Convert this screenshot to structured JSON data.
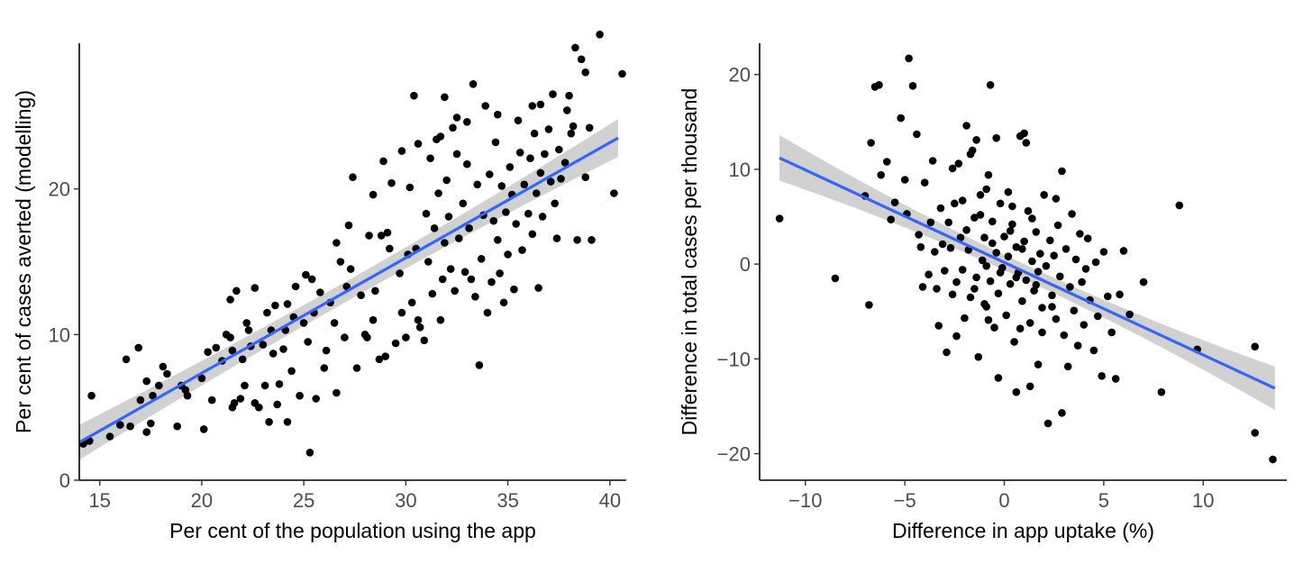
{
  "chart_data": [
    {
      "type": "scatter",
      "xlabel": "Per cent of the population using the app",
      "ylabel": "Per cent of cases averted (modelling)",
      "xlim": [
        14,
        40.8
      ],
      "ylim": [
        0,
        30
      ],
      "xticks": [
        15,
        20,
        25,
        30,
        35,
        40
      ],
      "yticks": [
        0,
        10,
        20
      ],
      "grid": false,
      "legend": "none",
      "colors": {
        "points": "#000000",
        "fit": "#3366ff",
        "band": "#bdbdbd"
      },
      "fit": {
        "x": [
          14,
          40.4
        ],
        "y": [
          2.6,
          23.5
        ],
        "band_half_width": [
          1.2,
          0.7,
          1.3
        ]
      },
      "points": [
        [
          14.2,
          2.5
        ],
        [
          14.5,
          2.7
        ],
        [
          14.6,
          5.8
        ],
        [
          15.5,
          3.0
        ],
        [
          16.0,
          3.8
        ],
        [
          16.3,
          8.3
        ],
        [
          16.5,
          3.7
        ],
        [
          16.9,
          9.1
        ],
        [
          17.0,
          5.5
        ],
        [
          17.3,
          3.3
        ],
        [
          17.3,
          6.8
        ],
        [
          17.5,
          3.9
        ],
        [
          17.6,
          5.8
        ],
        [
          17.9,
          6.5
        ],
        [
          18.1,
          7.8
        ],
        [
          18.3,
          7.3
        ],
        [
          18.8,
          3.7
        ],
        [
          19.2,
          6.2
        ],
        [
          19.3,
          5.8
        ],
        [
          20.1,
          3.5
        ],
        [
          20.3,
          8.8
        ],
        [
          20.5,
          5.5
        ],
        [
          20.7,
          9.1
        ],
        [
          21.0,
          8.2
        ],
        [
          21.2,
          10.0
        ],
        [
          21.4,
          9.8
        ],
        [
          21.4,
          12.4
        ],
        [
          21.5,
          5.0
        ],
        [
          21.6,
          5.3
        ],
        [
          21.7,
          13.0
        ],
        [
          21.9,
          5.6
        ],
        [
          22.0,
          8.3
        ],
        [
          22.1,
          6.5
        ],
        [
          22.2,
          10.8
        ],
        [
          22.4,
          9.2
        ],
        [
          22.6,
          5.3
        ],
        [
          22.6,
          13.2
        ],
        [
          22.8,
          5.0
        ],
        [
          23.0,
          9.3
        ],
        [
          23.1,
          6.5
        ],
        [
          23.2,
          11.5
        ],
        [
          23.3,
          4.0
        ],
        [
          23.4,
          10.3
        ],
        [
          23.5,
          8.7
        ],
        [
          23.6,
          12.0
        ],
        [
          23.7,
          5.2
        ],
        [
          23.8,
          6.6
        ],
        [
          24.0,
          9.0
        ],
        [
          24.1,
          10.3
        ],
        [
          24.2,
          4.0
        ],
        [
          24.4,
          7.5
        ],
        [
          24.5,
          11.2
        ],
        [
          24.6,
          13.3
        ],
        [
          24.8,
          5.8
        ],
        [
          25.0,
          10.8
        ],
        [
          25.1,
          14.1
        ],
        [
          25.2,
          9.5
        ],
        [
          25.3,
          1.9
        ],
        [
          25.5,
          11.5
        ],
        [
          25.6,
          5.6
        ],
        [
          25.8,
          12.9
        ],
        [
          26.0,
          7.7
        ],
        [
          26.1,
          8.9
        ],
        [
          26.3,
          12.2
        ],
        [
          26.5,
          10.8
        ],
        [
          26.6,
          6.0
        ],
        [
          26.8,
          15.0
        ],
        [
          27.0,
          9.8
        ],
        [
          27.1,
          13.3
        ],
        [
          27.3,
          14.5
        ],
        [
          27.4,
          20.8
        ],
        [
          27.6,
          7.7
        ],
        [
          27.8,
          12.7
        ],
        [
          28.0,
          10.0
        ],
        [
          28.1,
          9.8
        ],
        [
          28.2,
          16.8
        ],
        [
          28.4,
          11.0
        ],
        [
          28.5,
          13.0
        ],
        [
          28.7,
          8.3
        ],
        [
          28.8,
          16.8
        ],
        [
          28.9,
          21.9
        ],
        [
          29.0,
          8.5
        ],
        [
          29.2,
          15.9
        ],
        [
          29.3,
          20.4
        ],
        [
          29.5,
          9.4
        ],
        [
          29.7,
          14.2
        ],
        [
          29.8,
          11.5
        ],
        [
          30.0,
          9.8
        ],
        [
          30.1,
          15.5
        ],
        [
          30.2,
          20.1
        ],
        [
          30.3,
          12.2
        ],
        [
          30.5,
          15.9
        ],
        [
          30.6,
          11.0
        ],
        [
          30.7,
          10.5
        ],
        [
          30.9,
          9.6
        ],
        [
          31.0,
          18.3
        ],
        [
          31.1,
          15.0
        ],
        [
          31.2,
          22.1
        ],
        [
          31.3,
          12.8
        ],
        [
          31.4,
          17.3
        ],
        [
          31.5,
          23.4
        ],
        [
          31.6,
          19.7
        ],
        [
          31.7,
          11.0
        ],
        [
          31.8,
          13.8
        ],
        [
          31.9,
          16.3
        ],
        [
          32.0,
          20.6
        ],
        [
          32.1,
          18.1
        ],
        [
          32.2,
          14.5
        ],
        [
          32.3,
          24.2
        ],
        [
          32.4,
          13.0
        ],
        [
          32.5,
          22.4
        ],
        [
          32.6,
          16.6
        ],
        [
          32.8,
          19.0
        ],
        [
          32.9,
          14.3
        ],
        [
          33.0,
          21.7
        ],
        [
          33.1,
          17.3
        ],
        [
          33.2,
          13.8
        ],
        [
          33.3,
          27.2
        ],
        [
          33.4,
          12.6
        ],
        [
          33.5,
          20.3
        ],
        [
          33.6,
          7.9
        ],
        [
          33.7,
          15.2
        ],
        [
          33.8,
          18.2
        ],
        [
          34.0,
          11.5
        ],
        [
          34.1,
          21.0
        ],
        [
          34.2,
          13.6
        ],
        [
          34.3,
          17.8
        ],
        [
          34.4,
          23.2
        ],
        [
          34.5,
          16.5
        ],
        [
          34.6,
          14.2
        ],
        [
          34.7,
          20.2
        ],
        [
          34.8,
          12.2
        ],
        [
          34.9,
          18.4
        ],
        [
          35.0,
          15.5
        ],
        [
          35.1,
          21.5
        ],
        [
          35.2,
          19.6
        ],
        [
          35.3,
          13.1
        ],
        [
          35.4,
          17.6
        ],
        [
          35.5,
          24.7
        ],
        [
          35.6,
          22.5
        ],
        [
          35.7,
          15.8
        ],
        [
          35.8,
          20.3
        ],
        [
          36.0,
          18.3
        ],
        [
          36.1,
          22.1
        ],
        [
          36.2,
          16.9
        ],
        [
          36.3,
          23.8
        ],
        [
          36.4,
          19.7
        ],
        [
          36.5,
          13.2
        ],
        [
          36.6,
          21.1
        ],
        [
          36.7,
          18.1
        ],
        [
          36.8,
          22.4
        ],
        [
          37.0,
          24.1
        ],
        [
          37.1,
          20.5
        ],
        [
          37.2,
          26.5
        ],
        [
          37.3,
          19.0
        ],
        [
          37.4,
          16.6
        ],
        [
          37.5,
          22.7
        ],
        [
          37.6,
          20.7
        ],
        [
          37.8,
          21.8
        ],
        [
          38.0,
          26.4
        ],
        [
          38.1,
          23.8
        ],
        [
          38.2,
          24.3
        ],
        [
          38.4,
          16.5
        ],
        [
          38.6,
          28.9
        ],
        [
          38.8,
          20.8
        ],
        [
          39.1,
          16.5
        ],
        [
          39.5,
          30.6
        ],
        [
          40.2,
          19.7
        ],
        [
          40.6,
          27.9
        ],
        [
          30.4,
          26.4
        ],
        [
          31.9,
          26.3
        ],
        [
          32.5,
          24.9
        ],
        [
          33.9,
          25.7
        ],
        [
          34.5,
          25.1
        ],
        [
          36.2,
          25.7
        ],
        [
          36.6,
          25.8
        ],
        [
          37.9,
          25.4
        ],
        [
          39.0,
          24.2
        ],
        [
          38.8,
          28.0
        ],
        [
          38.3,
          29.7
        ],
        [
          29.8,
          22.6
        ],
        [
          30.6,
          23.1
        ],
        [
          31.7,
          23.6
        ],
        [
          33.0,
          24.6
        ],
        [
          28.4,
          19.6
        ],
        [
          29.1,
          17.0
        ],
        [
          27.2,
          17.5
        ],
        [
          26.6,
          16.3
        ],
        [
          25.4,
          13.8
        ],
        [
          24.2,
          12.1
        ],
        [
          22.3,
          10.3
        ],
        [
          21.5,
          8.9
        ],
        [
          20.0,
          7.0
        ],
        [
          19.0,
          6.5
        ]
      ]
    },
    {
      "type": "scatter",
      "xlabel": "Difference in app uptake (%)",
      "ylabel": "Difference in total cases per thousand",
      "xlim": [
        -12.3,
        14.2
      ],
      "ylim": [
        -22.8,
        23.3
      ],
      "xticks": [
        -10,
        -5,
        0,
        5,
        10
      ],
      "yticks": [
        -20,
        -10,
        0,
        10,
        20
      ],
      "grid": false,
      "legend": "none",
      "colors": {
        "points": "#000000",
        "fit": "#3366ff",
        "band": "#bdbdbd"
      },
      "fit": {
        "x": [
          -11.3,
          13.6
        ],
        "y": [
          11.2,
          -13.1
        ],
        "band_half_width": [
          2.4,
          0.8,
          2.3
        ]
      },
      "points": [
        [
          -11.3,
          4.8
        ],
        [
          -8.5,
          -1.5
        ],
        [
          -7.0,
          7.2
        ],
        [
          -6.8,
          -4.3
        ],
        [
          -6.7,
          12.8
        ],
        [
          -6.5,
          18.7
        ],
        [
          -6.3,
          18.9
        ],
        [
          -6.2,
          9.4
        ],
        [
          -5.9,
          10.8
        ],
        [
          -5.7,
          4.7
        ],
        [
          -5.5,
          6.5
        ],
        [
          -5.2,
          15.4
        ],
        [
          -5.0,
          8.9
        ],
        [
          -4.9,
          5.3
        ],
        [
          -4.8,
          21.7
        ],
        [
          -4.6,
          18.8
        ],
        [
          -4.4,
          13.7
        ],
        [
          -4.3,
          3.1
        ],
        [
          -4.1,
          -2.4
        ],
        [
          -4.0,
          8.6
        ],
        [
          -3.8,
          -1.1
        ],
        [
          -3.7,
          4.4
        ],
        [
          -3.6,
          10.9
        ],
        [
          -3.5,
          1.3
        ],
        [
          -3.3,
          -6.5
        ],
        [
          -3.2,
          5.9
        ],
        [
          -3.1,
          2.1
        ],
        [
          -3.0,
          -0.7
        ],
        [
          -2.9,
          -9.3
        ],
        [
          -2.8,
          4.4
        ],
        [
          -2.7,
          1.7
        ],
        [
          -2.6,
          -3.2
        ],
        [
          -2.5,
          6.4
        ],
        [
          -2.4,
          -1.9
        ],
        [
          -2.3,
          10.6
        ],
        [
          -2.2,
          2.8
        ],
        [
          -2.1,
          -0.6
        ],
        [
          -2.0,
          -5.7
        ],
        [
          -1.9,
          3.6
        ],
        [
          -1.8,
          1.5
        ],
        [
          -1.7,
          -3.5
        ],
        [
          -1.6,
          12.0
        ],
        [
          -1.5,
          4.9
        ],
        [
          -1.4,
          -1.4
        ],
        [
          -1.3,
          -9.8
        ],
        [
          -1.2,
          7.3
        ],
        [
          -1.1,
          0.4
        ],
        [
          -1.0,
          2.8
        ],
        [
          -0.9,
          -4.5
        ],
        [
          -0.8,
          9.4
        ],
        [
          -0.7,
          -1.8
        ],
        [
          -0.6,
          4.5
        ],
        [
          -0.5,
          -6.7
        ],
        [
          -0.4,
          1.2
        ],
        [
          -0.3,
          -3.1
        ],
        [
          -0.2,
          6.4
        ],
        [
          -0.1,
          -0.4
        ],
        [
          0.0,
          2.9
        ],
        [
          0.1,
          -5.4
        ],
        [
          0.2,
          0.8
        ],
        [
          0.3,
          -2.1
        ],
        [
          0.4,
          4.2
        ],
        [
          0.5,
          -8.2
        ],
        [
          0.6,
          1.8
        ],
        [
          0.7,
          -0.9
        ],
        [
          0.8,
          13.5
        ],
        [
          0.9,
          -3.9
        ],
        [
          1.0,
          2.4
        ],
        [
          1.1,
          -1.7
        ],
        [
          1.2,
          5.6
        ],
        [
          1.3,
          -6.2
        ],
        [
          1.4,
          0.3
        ],
        [
          1.5,
          -2.8
        ],
        [
          1.6,
          3.4
        ],
        [
          1.7,
          -10.6
        ],
        [
          1.8,
          1.1
        ],
        [
          1.9,
          -4.6
        ],
        [
          2.0,
          7.3
        ],
        [
          2.1,
          -0.2
        ],
        [
          2.2,
          -16.8
        ],
        [
          2.3,
          2.5
        ],
        [
          2.4,
          -3.3
        ],
        [
          2.5,
          0.9
        ],
        [
          2.6,
          -5.8
        ],
        [
          2.7,
          4.1
        ],
        [
          2.8,
          -1.3
        ],
        [
          2.9,
          9.8
        ],
        [
          3.0,
          -7.5
        ],
        [
          3.1,
          1.6
        ],
        [
          3.2,
          -10.8
        ],
        [
          3.3,
          -2.4
        ],
        [
          3.4,
          5.3
        ],
        [
          3.5,
          -4.9
        ],
        [
          3.6,
          0.5
        ],
        [
          3.7,
          -8.6
        ],
        [
          3.8,
          3.2
        ],
        [
          3.9,
          -1.9
        ],
        [
          4.0,
          -6.4
        ],
        [
          4.1,
          -0.5
        ],
        [
          4.2,
          2.7
        ],
        [
          4.3,
          -3.8
        ],
        [
          4.5,
          -9.1
        ],
        [
          4.6,
          0.2
        ],
        [
          4.7,
          -5.5
        ],
        [
          4.9,
          -11.8
        ],
        [
          5.0,
          1.3
        ],
        [
          5.2,
          -3.4
        ],
        [
          5.4,
          -7.2
        ],
        [
          5.6,
          -12.1
        ],
        [
          5.8,
          -3.2
        ],
        [
          6.0,
          1.4
        ],
        [
          6.3,
          -5.3
        ],
        [
          7.0,
          -1.9
        ],
        [
          7.9,
          -13.5
        ],
        [
          8.8,
          6.2
        ],
        [
          9.7,
          -9.0
        ],
        [
          12.6,
          -8.7
        ],
        [
          12.6,
          -17.8
        ],
        [
          13.5,
          -20.6
        ],
        [
          -1.4,
          13.1
        ],
        [
          -0.7,
          18.9
        ],
        [
          -0.4,
          13.3
        ],
        [
          1.0,
          13.8
        ],
        [
          1.1,
          12.8
        ],
        [
          -1.9,
          14.6
        ],
        [
          -2.6,
          10.1
        ],
        [
          -0.3,
          -12.0
        ],
        [
          0.6,
          -13.5
        ],
        [
          1.3,
          -12.9
        ],
        [
          2.9,
          -15.7
        ],
        [
          -1.7,
          11.6
        ],
        [
          -0.9,
          7.9
        ],
        [
          0.4,
          6.1
        ],
        [
          -2.1,
          6.7
        ],
        [
          -1.2,
          5.2
        ],
        [
          0.2,
          7.6
        ],
        [
          -0.6,
          2.2
        ],
        [
          0.9,
          1.6
        ],
        [
          -0.2,
          -0.9
        ],
        [
          0.6,
          -1.4
        ],
        [
          1.7,
          -0.8
        ],
        [
          -1.5,
          -2.6
        ],
        [
          -0.9,
          -0.2
        ],
        [
          0.3,
          3.5
        ],
        [
          1.6,
          -2.2
        ],
        [
          2.4,
          -4.5
        ],
        [
          -1.0,
          -4.2
        ],
        [
          0.8,
          -6.8
        ],
        [
          1.9,
          -7.2
        ],
        [
          -2.4,
          -7.6
        ],
        [
          -0.8,
          -5.9
        ],
        [
          1.4,
          4.8
        ],
        [
          2.6,
          6.9
        ],
        [
          -3.4,
          -2.6
        ],
        [
          -4.2,
          1.8
        ]
      ]
    }
  ]
}
